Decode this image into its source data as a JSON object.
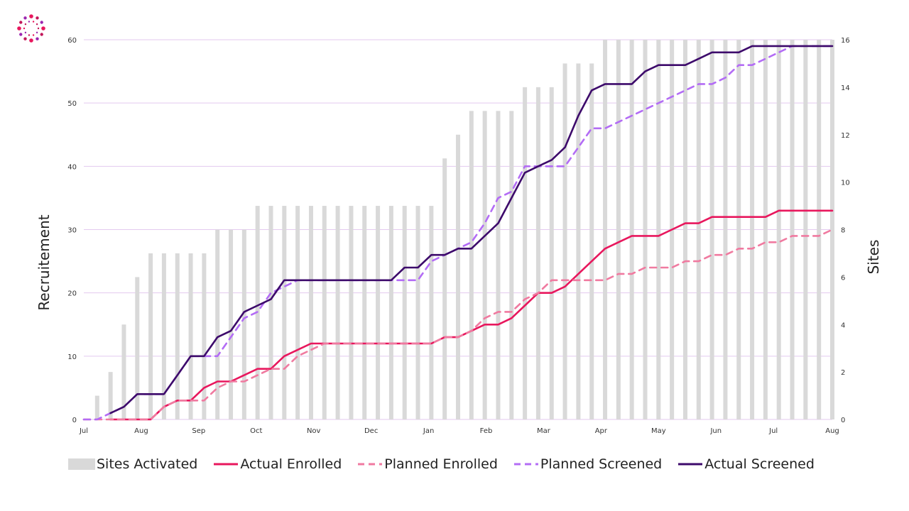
{
  "colors": {
    "sites": "#d9d9d9",
    "actual_enrolled": "#e8175d",
    "planned_enrolled": "#f07aa0",
    "planned_screened": "#b36cf5",
    "actual_screened": "#3d0a6b",
    "grid": "#e3c9ef",
    "logo": [
      "#e8175d",
      "#c2185b",
      "#9c27b0"
    ]
  },
  "logo_icon": "dotted-circle-logo",
  "chart_data": {
    "type": "bar-line-combo",
    "title": "",
    "xlabel": "",
    "ylabel": "Recruitement",
    "y2label": "Sites",
    "ylim": [
      0,
      60
    ],
    "y2lim": [
      0,
      16
    ],
    "yticks": [
      0,
      10,
      20,
      30,
      40,
      50,
      60
    ],
    "y2ticks": [
      0,
      2,
      4,
      6,
      8,
      10,
      12,
      14,
      16
    ],
    "grid": true,
    "legend_position": "bottom",
    "x_unit": "week",
    "x_start": "Jul",
    "x_ticks": [
      {
        "label": "Jul",
        "week": 0
      },
      {
        "label": "Aug",
        "week": 4.3
      },
      {
        "label": "Sep",
        "week": 8.6
      },
      {
        "label": "Oct",
        "week": 12.9
      },
      {
        "label": "Nov",
        "week": 17.2
      },
      {
        "label": "Dec",
        "week": 21.5
      },
      {
        "label": "Jan",
        "week": 25.8
      },
      {
        "label": "Feb",
        "week": 30.1
      },
      {
        "label": "Mar",
        "week": 34.4
      },
      {
        "label": "Apr",
        "week": 38.7
      },
      {
        "label": "May",
        "week": 43.0
      },
      {
        "label": "Jun",
        "week": 47.3
      },
      {
        "label": "Jul",
        "week": 51.6
      },
      {
        "label": "Aug",
        "week": 56.0
      }
    ],
    "series": [
      {
        "name": "Sites Activated",
        "kind": "bar",
        "axis": "right",
        "color_key": "sites",
        "x": [
          1,
          2,
          3,
          4,
          5,
          6,
          7,
          8,
          9,
          10,
          11,
          12,
          13,
          14,
          15,
          16,
          17,
          18,
          19,
          20,
          21,
          22,
          23,
          24,
          25,
          26,
          27,
          28,
          29,
          30,
          31,
          32,
          33,
          34,
          35,
          36,
          37,
          38,
          39,
          40,
          41,
          42,
          43,
          44,
          45,
          46,
          47,
          48,
          49,
          50,
          51,
          52,
          53,
          54,
          55,
          56
        ],
        "values": [
          1,
          2,
          4,
          6,
          7,
          7,
          7,
          7,
          7,
          8,
          8,
          8,
          9,
          9,
          9,
          9,
          9,
          9,
          9,
          9,
          9,
          9,
          9,
          9,
          9,
          9,
          11,
          12,
          13,
          13,
          13,
          13,
          14,
          14,
          14,
          15,
          15,
          15,
          16,
          16,
          16,
          16,
          16,
          16,
          16,
          16,
          16,
          16,
          16,
          16,
          16,
          16,
          16,
          16,
          16,
          16
        ]
      },
      {
        "name": "Actual Enrolled",
        "kind": "line",
        "style": "solid",
        "color_key": "actual_enrolled",
        "x": [
          2,
          3,
          4,
          5,
          6,
          7,
          8,
          9,
          10,
          11,
          12,
          13,
          14,
          15,
          16,
          17,
          18,
          19,
          20,
          21,
          22,
          23,
          24,
          25,
          26,
          27,
          28,
          29,
          30,
          31,
          32,
          33,
          34,
          35,
          36,
          37,
          38,
          39,
          40,
          41,
          42,
          43,
          44,
          45,
          46,
          47,
          48,
          49,
          50,
          51,
          52,
          53,
          54,
          55,
          56
        ],
        "values": [
          0,
          0,
          0,
          0,
          2,
          3,
          3,
          5,
          6,
          6,
          7,
          8,
          8,
          10,
          11,
          12,
          12,
          12,
          12,
          12,
          12,
          12,
          12,
          12,
          12,
          13,
          13,
          14,
          15,
          15,
          16,
          18,
          20,
          20,
          21,
          23,
          25,
          27,
          28,
          29,
          29,
          29,
          30,
          31,
          31,
          32,
          32,
          32,
          32,
          32,
          33,
          33,
          33,
          33,
          33
        ]
      },
      {
        "name": "Planned Enrolled",
        "kind": "line",
        "style": "dashed",
        "color_key": "planned_enrolled",
        "x": [
          0,
          1,
          2,
          3,
          4,
          5,
          6,
          7,
          8,
          9,
          10,
          11,
          12,
          13,
          14,
          15,
          16,
          17,
          18,
          19,
          20,
          21,
          22,
          23,
          24,
          25,
          26,
          27,
          28,
          29,
          30,
          31,
          32,
          33,
          34,
          35,
          36,
          37,
          38,
          39,
          40,
          41,
          42,
          43,
          44,
          45,
          46,
          47,
          48,
          49,
          50,
          51,
          52,
          53,
          54,
          55,
          56
        ],
        "values": [
          0,
          0,
          0,
          0,
          0,
          0,
          2,
          3,
          3,
          3,
          5,
          6,
          6,
          7,
          8,
          8,
          10,
          11,
          12,
          12,
          12,
          12,
          12,
          12,
          12,
          12,
          12,
          13,
          13,
          14,
          16,
          17,
          17,
          19,
          20,
          22,
          22,
          22,
          22,
          22,
          23,
          23,
          24,
          24,
          24,
          25,
          25,
          26,
          26,
          27,
          27,
          28,
          28,
          29,
          29,
          29,
          30
        ]
      },
      {
        "name": "Planned Screened",
        "kind": "line",
        "style": "dashed",
        "color_key": "planned_screened",
        "x": [
          0,
          1,
          2,
          3,
          4,
          5,
          6,
          7,
          8,
          9,
          10,
          11,
          12,
          13,
          14,
          15,
          16,
          17,
          18,
          19,
          20,
          21,
          22,
          23,
          24,
          25,
          26,
          27,
          28,
          29,
          30,
          31,
          32,
          33,
          34,
          35,
          36,
          37,
          38,
          39,
          40,
          41,
          42,
          43,
          44,
          45,
          46,
          47,
          48,
          49,
          50,
          51,
          52,
          53,
          54,
          55,
          56
        ],
        "values": [
          0,
          0,
          1,
          2,
          4,
          4,
          4,
          7,
          10,
          10,
          10,
          13,
          16,
          17,
          20,
          21,
          22,
          22,
          22,
          22,
          22,
          22,
          22,
          22,
          22,
          22,
          25,
          26,
          27,
          28,
          31,
          35,
          36,
          40,
          40,
          40,
          40,
          43,
          46,
          46,
          47,
          48,
          49,
          50,
          51,
          52,
          53,
          53,
          54,
          56,
          56,
          57,
          58,
          59,
          59,
          59,
          59
        ]
      },
      {
        "name": "Actual Screened",
        "kind": "line",
        "style": "solid",
        "color_key": "actual_screened",
        "x": [
          2,
          3,
          4,
          5,
          6,
          7,
          8,
          9,
          10,
          11,
          12,
          13,
          14,
          15,
          16,
          17,
          18,
          19,
          20,
          21,
          22,
          23,
          24,
          25,
          26,
          27,
          28,
          29,
          30,
          31,
          32,
          33,
          34,
          35,
          36,
          37,
          38,
          39,
          40,
          41,
          42,
          43,
          44,
          45,
          46,
          47,
          48,
          49,
          50,
          51,
          52,
          53,
          54,
          55,
          56
        ],
        "values": [
          1,
          2,
          4,
          4,
          4,
          7,
          10,
          10,
          13,
          14,
          17,
          18,
          19,
          22,
          22,
          22,
          22,
          22,
          22,
          22,
          22,
          22,
          24,
          24,
          26,
          26,
          27,
          27,
          29,
          31,
          35,
          39,
          40,
          41,
          43,
          48,
          52,
          53,
          53,
          53,
          55,
          56,
          56,
          56,
          57,
          58,
          58,
          58,
          59,
          59,
          59,
          59,
          59,
          59,
          59
        ]
      }
    ]
  },
  "legend": [
    {
      "label": "Sites Activated",
      "type": "bar",
      "color_key": "sites"
    },
    {
      "label": "Actual Enrolled",
      "type": "solid",
      "color_key": "actual_enrolled"
    },
    {
      "label": "Planned Enrolled",
      "type": "dashed",
      "color_key": "planned_enrolled"
    },
    {
      "label": "Planned Screened",
      "type": "dashed",
      "color_key": "planned_screened"
    },
    {
      "label": "Actual Screened",
      "type": "solid",
      "color_key": "actual_screened"
    }
  ]
}
